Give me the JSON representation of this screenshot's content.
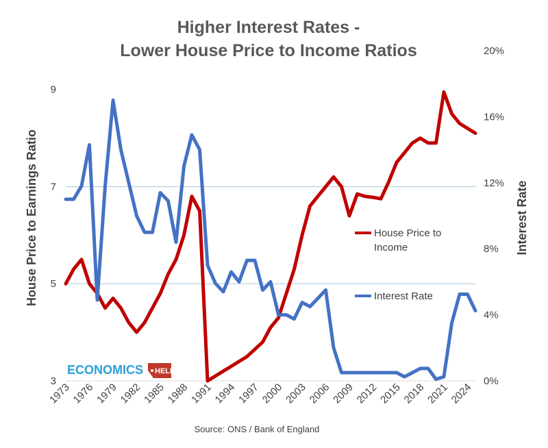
{
  "chart_data": {
    "type": "line",
    "title_line1": "Higher Interest Rates -",
    "title_line2": "Lower House Price to Income Ratios",
    "ylabel_left": "House Price to Earnings Ratio",
    "ylabel_right": "Interest Rate",
    "left_ticks": [
      "3",
      "5",
      "7",
      "9"
    ],
    "right_ticks": [
      "0%",
      "4%",
      "8%",
      "12%",
      "16%",
      "20%"
    ],
    "x_ticks": [
      "1973",
      "1976",
      "1979",
      "1982",
      "1985",
      "1988",
      "1991",
      "1994",
      "1997",
      "2000",
      "2003",
      "2006",
      "2009",
      "2012",
      "2015",
      "2018",
      "2021",
      "2024"
    ],
    "ylim_left": [
      3,
      9.8
    ],
    "ylim_right": [
      0,
      20
    ],
    "xlim": [
      1973,
      2025
    ],
    "grid": "horizontal",
    "legend_placement": "right",
    "series": [
      {
        "name": "House Price to Income",
        "axis": "left",
        "color": "#c00000",
        "x": [
          1973,
          1974,
          1975,
          1976,
          1977,
          1978,
          1979,
          1980,
          1981,
          1982,
          1983,
          1984,
          1985,
          1986,
          1987,
          1988,
          1989,
          1990,
          1991,
          1992,
          1993,
          1994,
          1995,
          1996,
          1997,
          1998,
          1999,
          2000,
          2001,
          2002,
          2003,
          2004,
          2005,
          2006,
          2007,
          2008,
          2009,
          2010,
          2011,
          2012,
          2013,
          2014,
          2015,
          2016,
          2017,
          2018,
          2019,
          2020,
          2021,
          2022,
          2023,
          2024,
          2025
        ],
        "values": [
          5.0,
          5.3,
          5.5,
          5.0,
          4.8,
          4.5,
          4.7,
          4.5,
          4.2,
          4.0,
          4.2,
          4.5,
          4.8,
          5.2,
          5.5,
          6.0,
          6.8,
          6.5,
          3.0,
          3.1,
          3.2,
          3.3,
          3.4,
          3.5,
          3.65,
          3.8,
          4.1,
          4.3,
          4.8,
          5.3,
          6.0,
          6.6,
          6.8,
          7.0,
          7.2,
          7.0,
          6.4,
          6.85,
          6.8,
          6.78,
          6.75,
          7.1,
          7.5,
          7.7,
          7.9,
          8.0,
          7.9,
          7.9,
          8.95,
          8.5,
          8.3,
          8.2,
          8.1
        ]
      },
      {
        "name": "Interest Rate",
        "axis": "right",
        "color": "#4472c4",
        "x": [
          1973,
          1974,
          1975,
          1976,
          1977,
          1978,
          1979,
          1980,
          1981,
          1982,
          1983,
          1984,
          1985,
          1986,
          1987,
          1988,
          1989,
          1990,
          1991,
          1992,
          1993,
          1994,
          1995,
          1996,
          1997,
          1998,
          1999,
          2000,
          2001,
          2002,
          2003,
          2004,
          2005,
          2006,
          2007,
          2008,
          2009,
          2010,
          2011,
          2012,
          2013,
          2014,
          2015,
          2016,
          2017,
          2018,
          2019,
          2020,
          2021,
          2022,
          2023,
          2024,
          2025
        ],
        "values": [
          11,
          11,
          11.8,
          14.3,
          4.9,
          11.8,
          17,
          14,
          12,
          10,
          9,
          9,
          11.4,
          10.9,
          8.4,
          13,
          14.9,
          14,
          7,
          5.9,
          5.4,
          6.6,
          6,
          7.3,
          7.3,
          5.5,
          6,
          4,
          4,
          3.75,
          4.75,
          4.5,
          5,
          5.5,
          2,
          0.5,
          0.5,
          0.5,
          0.5,
          0.5,
          0.5,
          0.5,
          0.5,
          0.25,
          0.5,
          0.75,
          0.75,
          0.1,
          0.25,
          3.5,
          5.25,
          5.25,
          4.25
        ]
      }
    ],
    "source": "Source: ONS / Bank of England",
    "logo_text": "ECONOMICS",
    "logo_tag": "HELP"
  }
}
